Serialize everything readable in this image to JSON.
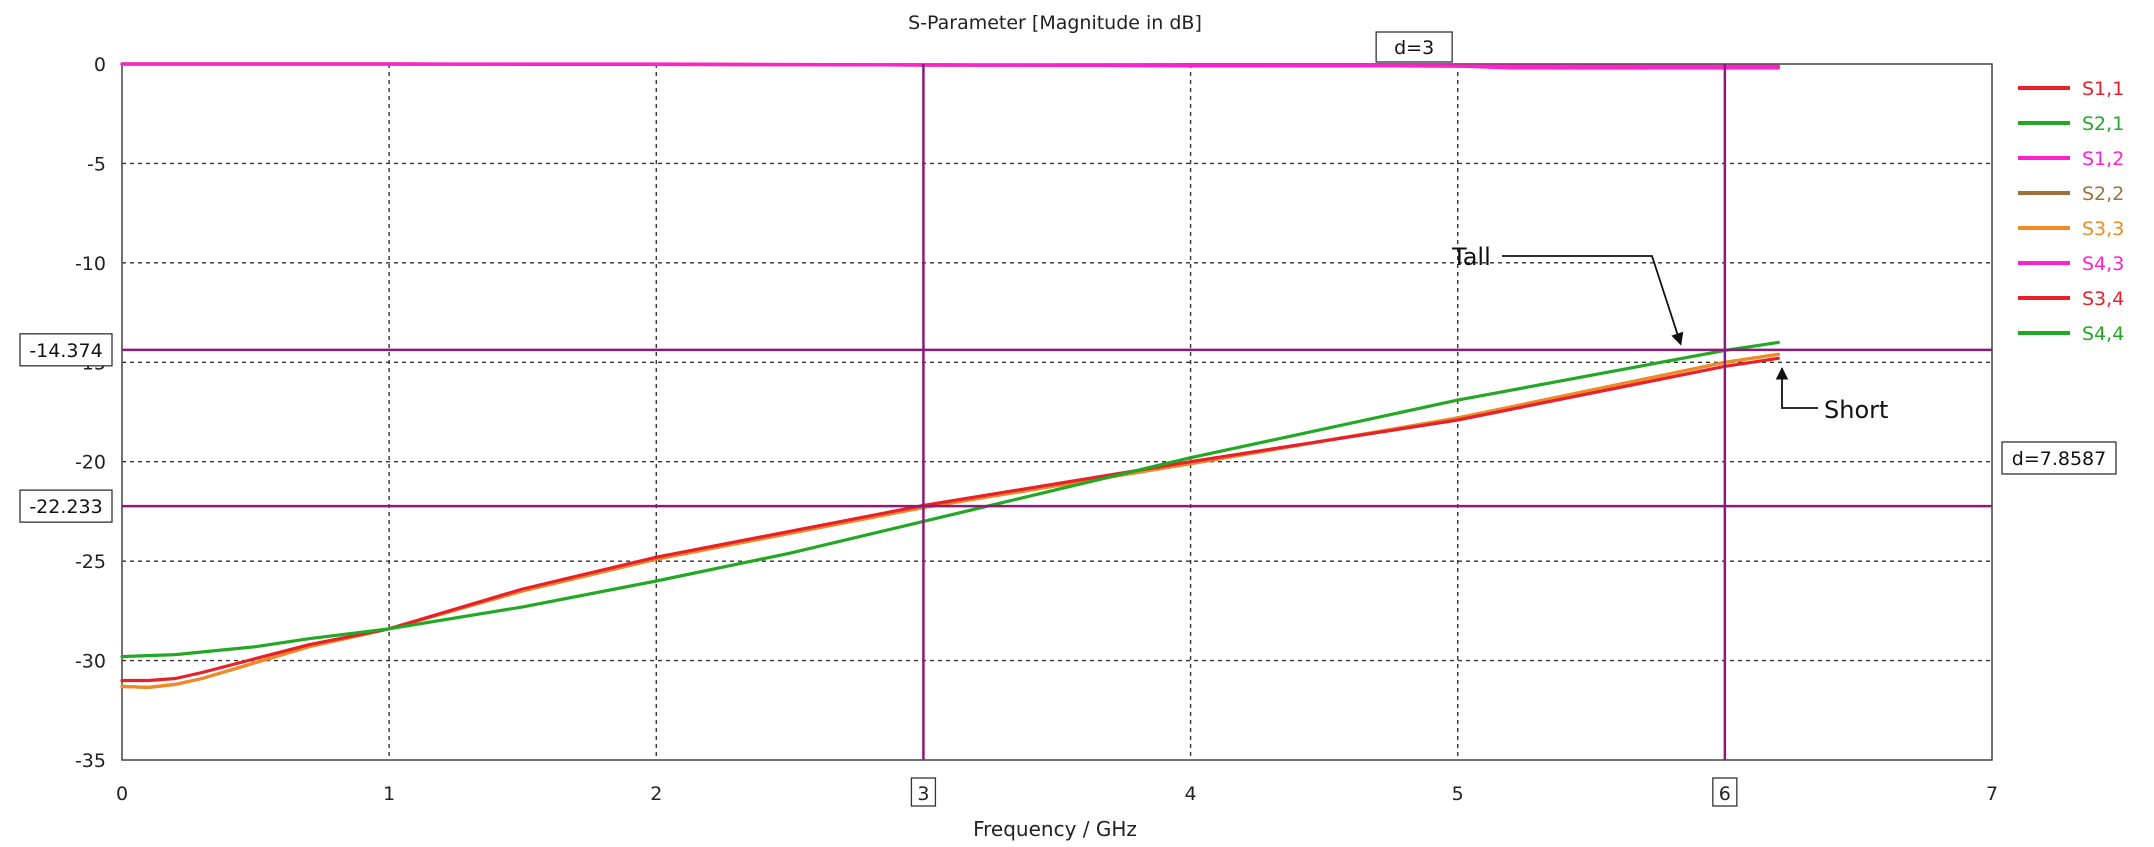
{
  "chart_data": {
    "type": "line",
    "title": "S-Parameter [Magnitude in dB]",
    "xlabel": "Frequency / GHz",
    "ylabel": "",
    "xlim": [
      0,
      7
    ],
    "ylim": [
      -35,
      0
    ],
    "x_ticks": [
      0,
      1,
      2,
      3,
      4,
      5,
      6,
      7
    ],
    "y_ticks": [
      0,
      -5,
      -10,
      -15,
      -20,
      -25,
      -30,
      -35
    ],
    "grid": true,
    "legend_position": "right",
    "series": [
      {
        "name": "S1,1",
        "color": "#e8202a",
        "x": [
          0,
          1,
          2,
          3,
          4,
          5,
          6,
          6.2
        ],
        "y": [
          0,
          0,
          -0.02,
          -0.05,
          -0.08,
          -0.1,
          -0.12,
          -0.12
        ]
      },
      {
        "name": "S2,1",
        "color": "#22a822",
        "x": [
          0,
          1,
          2,
          3,
          4,
          5,
          6,
          6.2
        ],
        "y": [
          0,
          0,
          -0.02,
          -0.05,
          -0.08,
          -0.1,
          -0.12,
          -0.12
        ]
      },
      {
        "name": "S1,2",
        "color": "#ff22cc",
        "x": [
          0,
          1,
          2,
          3,
          4,
          5,
          5.2,
          6,
          6.2
        ],
        "y": [
          0,
          0,
          0,
          -0.05,
          -0.08,
          -0.1,
          -0.2,
          -0.2,
          -0.2
        ]
      },
      {
        "name": "S2,2",
        "color": "#a0703a",
        "x": [
          0,
          0.1,
          0.2,
          0.3,
          0.5,
          0.7,
          1,
          1.5,
          2,
          3,
          4,
          5,
          6,
          6.2
        ],
        "y": [
          -31.3,
          -31.35,
          -31.2,
          -30.9,
          -30.1,
          -29.3,
          -28.4,
          -26.5,
          -24.9,
          -22.3,
          -20.1,
          -17.8,
          -15.0,
          -14.6
        ]
      },
      {
        "name": "S3,3",
        "color": "#f08a24",
        "x": [
          0,
          0.1,
          0.2,
          0.3,
          0.5,
          0.7,
          1,
          1.5,
          2,
          3,
          4,
          5,
          6,
          6.2
        ],
        "y": [
          -31.3,
          -31.35,
          -31.2,
          -30.9,
          -30.1,
          -29.3,
          -28.4,
          -26.5,
          -24.9,
          -22.3,
          -20.1,
          -17.8,
          -15.0,
          -14.6
        ]
      },
      {
        "name": "S4,3",
        "color": "#ff22cc",
        "x": [
          0,
          1,
          2,
          3,
          4,
          5,
          6,
          6.2
        ],
        "y": [
          0,
          0,
          -0.02,
          -0.05,
          -0.08,
          -0.1,
          -0.12,
          -0.12
        ]
      },
      {
        "name": "S3,4",
        "color": "#e8202a",
        "x": [
          0,
          0.1,
          0.2,
          0.3,
          0.5,
          0.7,
          1,
          1.5,
          2,
          3,
          4,
          5,
          6,
          6.2
        ],
        "y": [
          -31.0,
          -31.0,
          -30.9,
          -30.6,
          -29.9,
          -29.2,
          -28.4,
          -26.4,
          -24.8,
          -22.2,
          -20.0,
          -17.9,
          -15.2,
          -14.8
        ]
      },
      {
        "name": "S4,4",
        "color": "#22a822",
        "x": [
          0,
          0.2,
          0.5,
          0.7,
          1,
          1.5,
          2,
          2.5,
          3,
          3.5,
          4,
          5,
          6,
          6.2
        ],
        "y": [
          -29.8,
          -29.7,
          -29.3,
          -28.9,
          -28.4,
          -27.3,
          -26.0,
          -24.6,
          -23.0,
          -21.4,
          -19.8,
          -16.9,
          -14.4,
          -14.0
        ]
      }
    ],
    "markers": {
      "vertical": [
        {
          "x": 3,
          "label": "3"
        },
        {
          "x": 6,
          "label": "6"
        }
      ],
      "horizontal": [
        {
          "y": -14.374,
          "label": "-14.374"
        },
        {
          "y": -22.233,
          "label": "-22.233"
        }
      ],
      "delta_x_label": "d=3",
      "delta_y_label": "d=7.8587",
      "marker_color": "#8b1a7a"
    },
    "annotations": [
      {
        "text": "Tall",
        "x": 5.85,
        "y": -14.3
      },
      {
        "text": "Short",
        "x": 6.15,
        "y": -14.9
      }
    ]
  }
}
